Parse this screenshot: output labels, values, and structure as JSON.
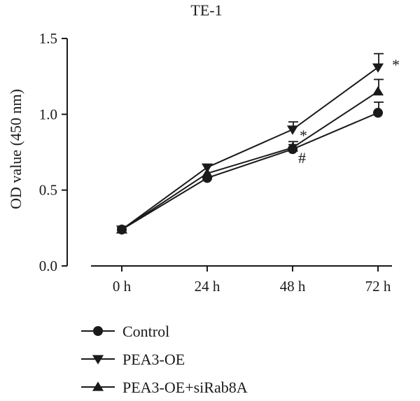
{
  "chart_data": {
    "type": "line",
    "title": "TE-1",
    "xlabel": "",
    "ylabel": "OD value (450 nm)",
    "categories": [
      "0 h",
      "24 h",
      "48 h",
      "72 h"
    ],
    "ylim": [
      0,
      1.5
    ],
    "yticks": [
      "0.0",
      "0.5",
      "1.0",
      "1.5"
    ],
    "ytick_values": [
      0,
      0.5,
      1.0,
      1.5
    ],
    "grid": false,
    "legend_position": "bottom-left",
    "series": [
      {
        "name": "Control",
        "marker": "circle",
        "values": [
          0.24,
          0.58,
          0.77,
          1.01
        ],
        "errors": [
          0.02,
          0.02,
          0.03,
          0.07
        ]
      },
      {
        "name": "PEA3-OE",
        "marker": "triangle-down",
        "values": [
          0.24,
          0.65,
          0.9,
          1.31
        ],
        "errors": [
          0.02,
          0.02,
          0.05,
          0.09
        ]
      },
      {
        "name": "PEA3-OE+siRab8A",
        "marker": "triangle-up",
        "values": [
          0.24,
          0.61,
          0.78,
          1.15
        ],
        "errors": [
          0.02,
          0.02,
          0.04,
          0.08
        ]
      }
    ],
    "annotations": [
      {
        "text": "*",
        "category": "72 h",
        "series": "PEA3-OE"
      },
      {
        "text": "*",
        "category": "48 h",
        "series": "PEA3-OE"
      },
      {
        "text": "#",
        "category": "48 h",
        "series": "PEA3-OE+siRab8A"
      }
    ],
    "colors": {
      "line": "#1a1a1a",
      "background": "#ffffff"
    }
  }
}
